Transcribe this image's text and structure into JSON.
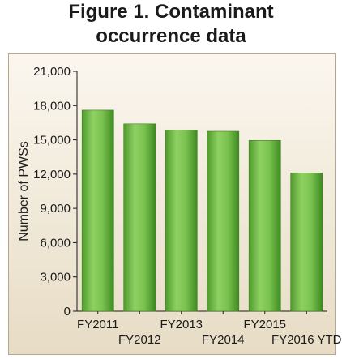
{
  "figure": {
    "title_line1": "Figure 1. Contaminant",
    "title_line2": "occurrence data"
  },
  "chart_data": {
    "type": "bar",
    "categories": [
      "FY2011",
      "FY2012",
      "FY2013",
      "FY2014",
      "FY2015",
      "FY2016 YTD"
    ],
    "values": [
      17600,
      16400,
      15850,
      15750,
      14950,
      12100
    ],
    "ylabel": "Number of PWSs",
    "xlabel": "",
    "ylim": [
      0,
      21000
    ],
    "yticks": [
      0,
      3000,
      6000,
      9000,
      12000,
      15000,
      18000,
      21000
    ],
    "ytick_labels": [
      "0",
      "3,000",
      "6,000",
      "9,000",
      "12,000",
      "15,000",
      "18,000",
      "21,000"
    ],
    "grid": false,
    "legend": "none",
    "bar_color": "#6db843",
    "plot_background": "#fbf7ef"
  }
}
